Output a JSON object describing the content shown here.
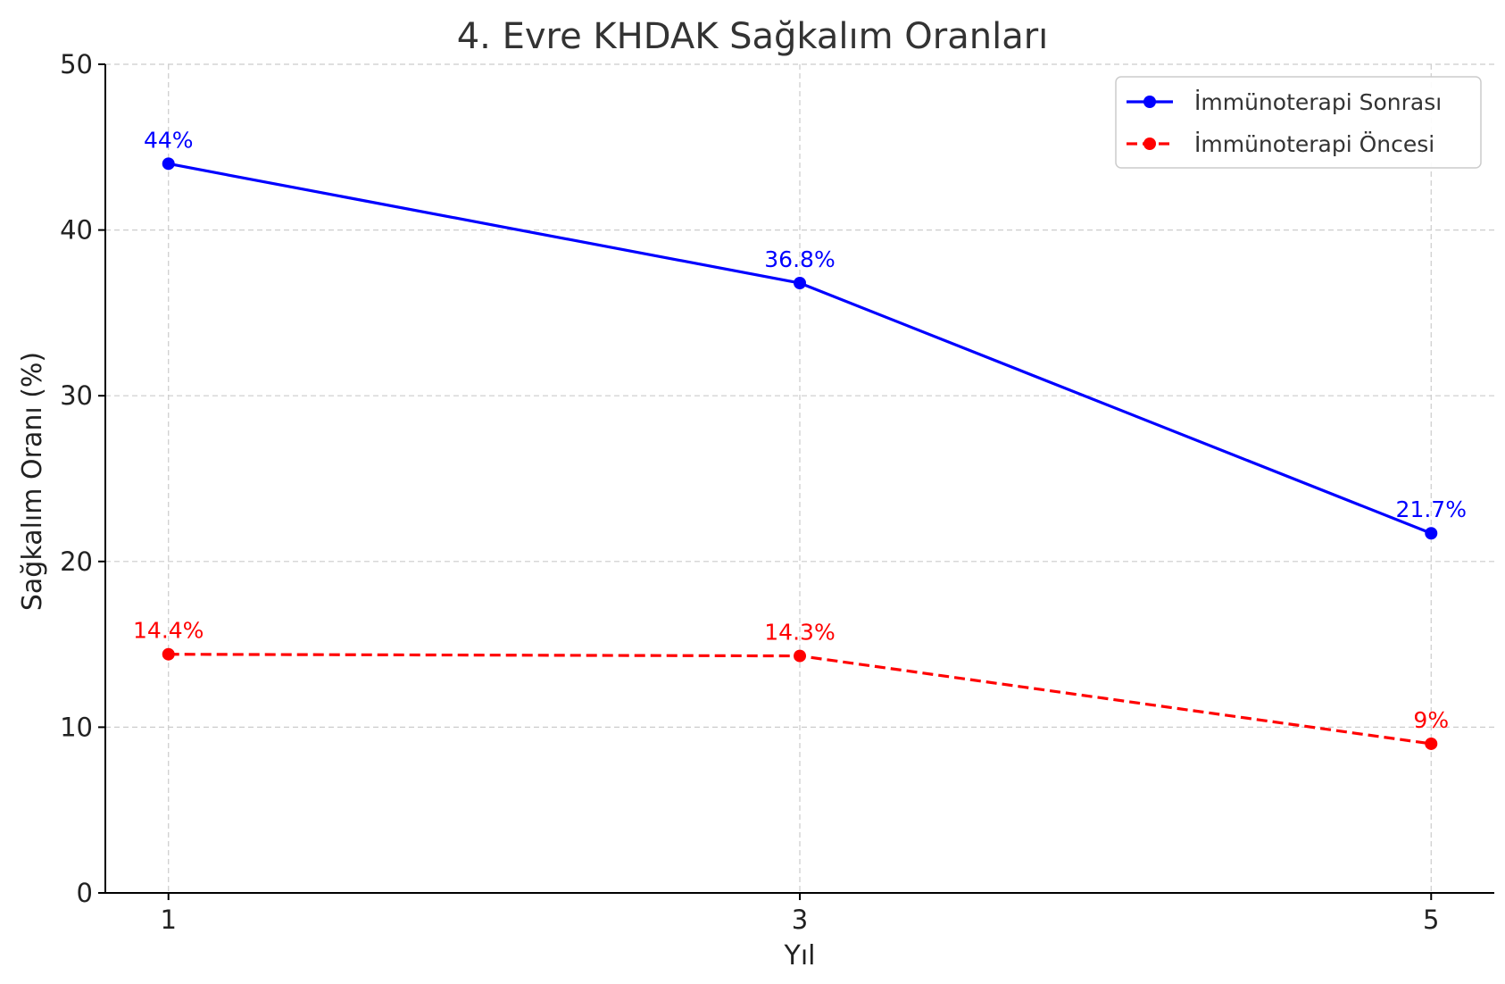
{
  "chart_data": {
    "type": "line",
    "title": "4. Evre KHDAK Sağkalım Oranları",
    "xlabel": "Yıl",
    "ylabel": "Sağkalım Oranı (%)",
    "x": [
      1,
      3,
      5
    ],
    "x_tick_labels": [
      "1",
      "3",
      "5"
    ],
    "xlim": [
      0.8,
      5.2
    ],
    "ylim": [
      0,
      50
    ],
    "y_ticks": [
      0,
      10,
      20,
      30,
      40,
      50
    ],
    "y_tick_labels": [
      "0",
      "10",
      "20",
      "30",
      "40",
      "50"
    ],
    "grid": true,
    "legend_position": "top-right",
    "series": [
      {
        "name": "İmmünoterapi Sonrası",
        "values": [
          44,
          36.8,
          21.7
        ],
        "labels": [
          "44%",
          "36.8%",
          "21.7%"
        ],
        "color": "#0000ff",
        "line_style": "solid",
        "marker": "circle"
      },
      {
        "name": "İmmünoterapi Öncesi",
        "values": [
          14.4,
          14.3,
          9
        ],
        "labels": [
          "14.4%",
          "14.3%",
          "9%"
        ],
        "color": "#ff0000",
        "line_style": "dashed",
        "marker": "circle"
      }
    ]
  }
}
